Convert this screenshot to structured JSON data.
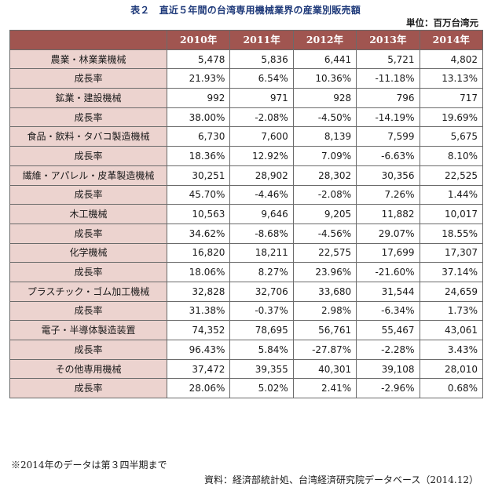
{
  "title": "表２　直近５年間の台湾専用機械業界の産業別販売額",
  "unit": "単位：百万台湾元",
  "table": {
    "years": [
      "2010年",
      "2011年",
      "2012年",
      "2013年",
      "2014年"
    ],
    "rows": [
      {
        "label": "農業・林業業機械",
        "values": [
          "5,478",
          "5,836",
          "6,441",
          "5,721",
          "4,802"
        ]
      },
      {
        "label": "成長率",
        "values": [
          "21.93%",
          "6.54%",
          "10.36%",
          "-11.18%",
          "13.13%"
        ]
      },
      {
        "label": "鉱業・建設機械",
        "values": [
          "992",
          "971",
          "928",
          "796",
          "717"
        ]
      },
      {
        "label": "成長率",
        "values": [
          "38.00%",
          "-2.08%",
          "-4.50%",
          "-14.19%",
          "19.69%"
        ]
      },
      {
        "label": "食品・飲料・タバコ製造機械",
        "values": [
          "6,730",
          "7,600",
          "8,139",
          "7,599",
          "5,675"
        ]
      },
      {
        "label": "成長率",
        "values": [
          "18.36%",
          "12.92%",
          "7.09%",
          "-6.63%",
          "8.10%"
        ]
      },
      {
        "label": "繊維・アパレル・皮革製造機械",
        "values": [
          "30,251",
          "28,902",
          "28,302",
          "30,356",
          "22,525"
        ]
      },
      {
        "label": "成長率",
        "values": [
          "45.70%",
          "-4.46%",
          "-2.08%",
          "7.26%",
          "1.44%"
        ]
      },
      {
        "label": "木工機械",
        "values": [
          "10,563",
          "9,646",
          "9,205",
          "11,882",
          "10,017"
        ]
      },
      {
        "label": "成長率",
        "values": [
          "34.62%",
          "-8.68%",
          "-4.56%",
          "29.07%",
          "18.55%"
        ]
      },
      {
        "label": "化学機械",
        "values": [
          "16,820",
          "18,211",
          "22,575",
          "17,699",
          "17,307"
        ]
      },
      {
        "label": "成長率",
        "values": [
          "18.06%",
          "8.27%",
          "23.96%",
          "-21.60%",
          "37.14%"
        ]
      },
      {
        "label": "プラスチック・ゴム加工機械",
        "values": [
          "32,828",
          "32,706",
          "33,680",
          "31,544",
          "24,659"
        ]
      },
      {
        "label": "成長率",
        "values": [
          "31.38%",
          "-0.37%",
          "2.98%",
          "-6.34%",
          "1.73%"
        ]
      },
      {
        "label": "電子・半導体製造装置",
        "values": [
          "74,352",
          "78,695",
          "56,761",
          "55,467",
          "43,061"
        ]
      },
      {
        "label": "成長率",
        "values": [
          "96.43%",
          "5.84%",
          "-27.87%",
          "-2.28%",
          "3.43%"
        ]
      },
      {
        "label": "その他専用機械",
        "values": [
          "37,472",
          "39,355",
          "40,301",
          "39,108",
          "28,010"
        ]
      },
      {
        "label": "成長率",
        "values": [
          "28.06%",
          "5.02%",
          "2.41%",
          "-2.96%",
          "0.68%"
        ]
      }
    ]
  },
  "note": "※2014年のデータは第３四半期まで",
  "source": "資料：経済部統計処、台湾経済研究院データベース（2014.12）"
}
